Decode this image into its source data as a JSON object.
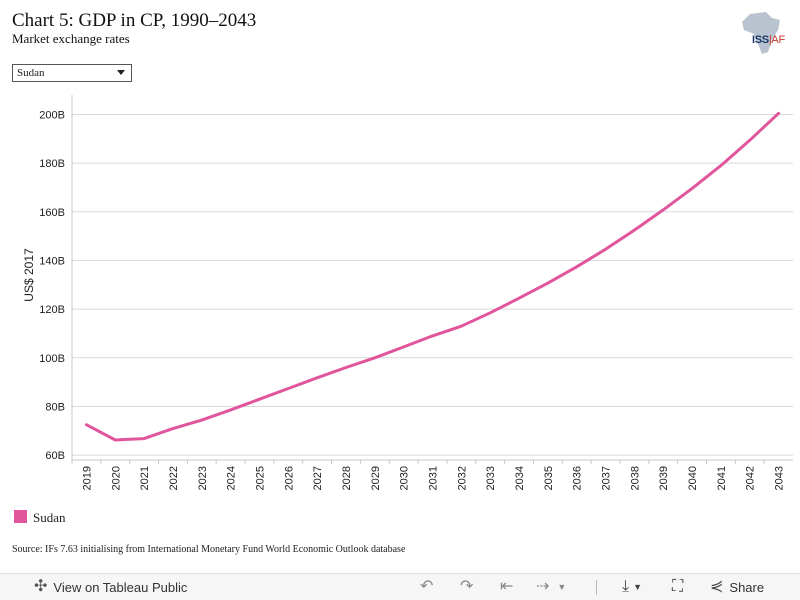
{
  "header": {
    "title": "Chart 5: GDP in CP, 1990–2043",
    "subtitle": "Market exchange rates"
  },
  "logo": {
    "brand": "ISS",
    "suffix": "AF",
    "icon": "africa-map-icon"
  },
  "filter": {
    "selected": "Sudan",
    "icon": "chevron-down-icon"
  },
  "chart_data": {
    "type": "line",
    "title": "",
    "xlabel": "",
    "ylabel": "US$ 2017",
    "x": [
      "2019",
      "2020",
      "2021",
      "2022",
      "2023",
      "2024",
      "2025",
      "2026",
      "2027",
      "2028",
      "2029",
      "2030",
      "2031",
      "2032",
      "2033",
      "2034",
      "2035",
      "2036",
      "2037",
      "2038",
      "2039",
      "2040",
      "2041",
      "2042",
      "2043"
    ],
    "y_ticks": [
      {
        "value": 60,
        "label": "60B"
      },
      {
        "value": 80,
        "label": "80B"
      },
      {
        "value": 100,
        "label": "100B"
      },
      {
        "value": 120,
        "label": "120B"
      },
      {
        "value": 140,
        "label": "140B"
      },
      {
        "value": 160,
        "label": "160B"
      },
      {
        "value": 180,
        "label": "180B"
      },
      {
        "value": 200,
        "label": "200B"
      }
    ],
    "ylim": [
      58,
      208
    ],
    "grid": true,
    "series": [
      {
        "name": "Sudan",
        "color": "#e0559b",
        "values": [
          72.5,
          66.2,
          66.8,
          70.9,
          74.4,
          78.6,
          83.0,
          87.4,
          91.8,
          96.0,
          100.0,
          104.5,
          109.0,
          113.0,
          118.5,
          124.5,
          130.7,
          137.4,
          144.6,
          152.5,
          160.8,
          169.6,
          179.0,
          189.4,
          200.5
        ]
      }
    ]
  },
  "legend": {
    "items": [
      {
        "label": "Sudan",
        "color": "#e0559b"
      }
    ]
  },
  "source": "Source: IFs 7.63 initialising from International Monetary Fund World Economic Outlook database",
  "toolbar": {
    "view_label": "View on Tableau Public",
    "share_label": "Share",
    "icons": [
      "tableau-logo-icon",
      "undo-icon",
      "redo-icon",
      "revert-icon",
      "refresh-icon",
      "download-icon",
      "fullscreen-icon",
      "share-icon"
    ]
  }
}
